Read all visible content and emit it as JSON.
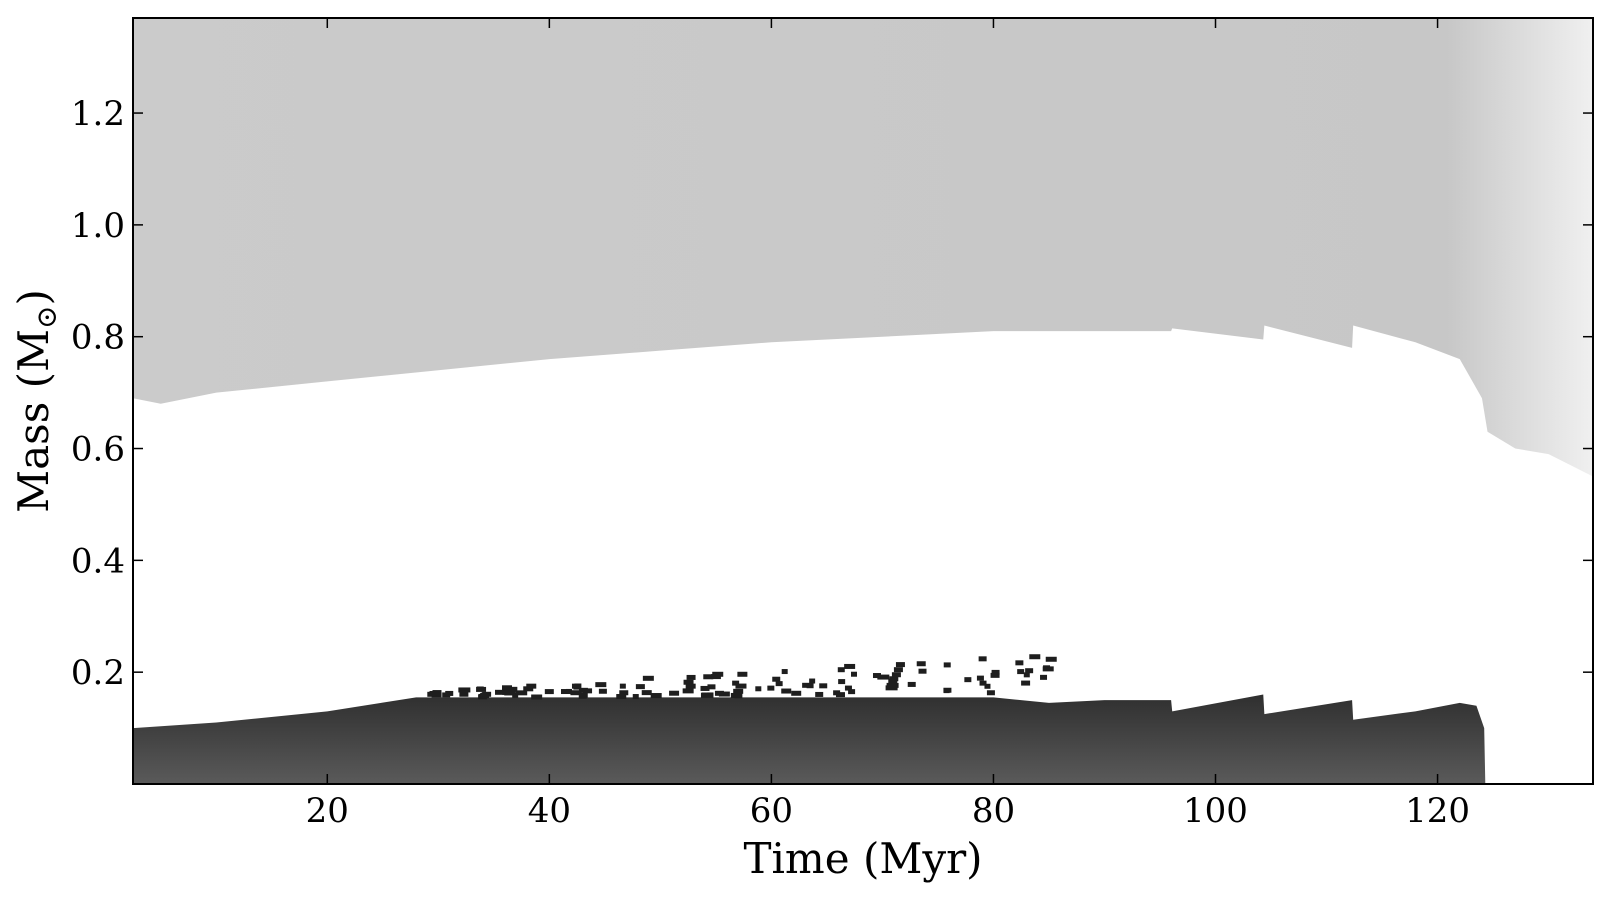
{
  "chart_data": {
    "type": "area",
    "title": "",
    "xlabel": "Time (Myr)",
    "ylabel_main": "Mass (M",
    "ylabel_sym": "⊙",
    "ylabel_close": ")",
    "xlim": [
      2.5,
      134
    ],
    "ylim": [
      0,
      1.37
    ],
    "xticks": [
      20,
      40,
      60,
      80,
      100,
      120
    ],
    "xtick_labels": [
      "20",
      "40",
      "60",
      "80",
      "100",
      "120"
    ],
    "yticks": [
      0.2,
      0.4,
      0.6,
      0.8,
      1.0,
      1.2
    ],
    "ytick_labels": [
      "0.2",
      "0.4",
      "0.6",
      "0.8",
      "1.0",
      "1.2"
    ],
    "grid": false,
    "colors": {
      "envelope": "#cbcbcb",
      "envelope_late": "#e6e6e6",
      "core_dark": "#2f2f2f",
      "core_light": "#5a5a5a",
      "radiative_zone": "#ffffff"
    },
    "series": [
      {
        "x": [
          2.5,
          5,
          10,
          20,
          30,
          40,
          50,
          60,
          70,
          80,
          88,
          96,
          96.1,
          104.3,
          104.4,
          112.3,
          112.4,
          118,
          122,
          124,
          124.5,
          127,
          130,
          134
        ],
        "upper": [
          0.69,
          0.68,
          0.7,
          0.72,
          0.74,
          0.76,
          0.775,
          0.79,
          0.8,
          0.81,
          0.81,
          0.81,
          0.815,
          0.795,
          0.82,
          0.78,
          0.82,
          0.79,
          0.76,
          0.69,
          0.63,
          0.6,
          0.59,
          0.55
        ]
      },
      {
        "x": [
          2.5,
          10,
          20,
          28,
          40,
          60,
          80,
          85,
          90,
          96,
          96.1,
          104.3,
          104.4,
          112.3,
          112.4,
          118,
          122,
          123.5,
          124.2,
          124.3
        ],
        "upper": [
          0.1,
          0.11,
          0.13,
          0.155,
          0.155,
          0.155,
          0.155,
          0.145,
          0.15,
          0.15,
          0.13,
          0.16,
          0.125,
          0.15,
          0.115,
          0.13,
          0.145,
          0.14,
          0.1,
          0.0
        ]
      }
    ]
  }
}
